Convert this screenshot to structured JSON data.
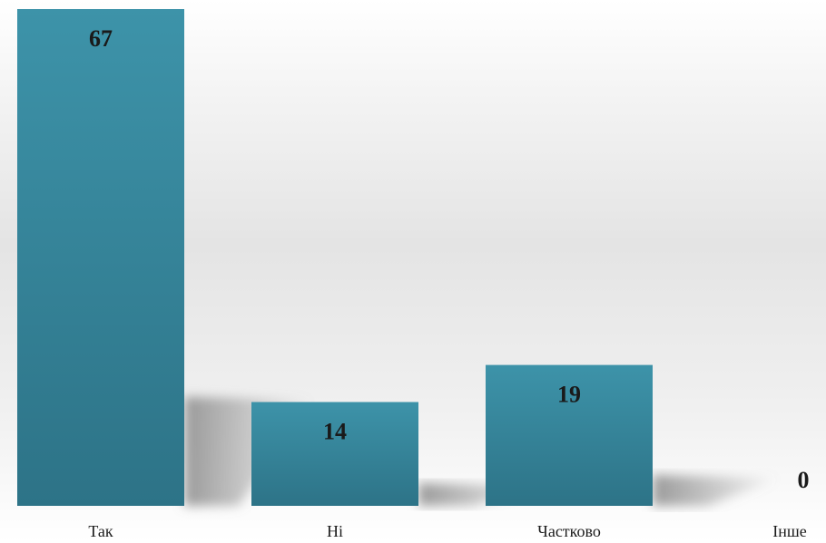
{
  "chart_data": {
    "type": "bar",
    "title": "",
    "xlabel": "",
    "ylabel": "",
    "categories": [
      "Так",
      "Ні",
      "Частково",
      "Інше"
    ],
    "values": [
      67,
      14,
      19,
      0
    ],
    "ylim": [
      0,
      67
    ],
    "grid": false,
    "legend": "none",
    "colors": {
      "bar_top": "#3d93a9",
      "bar_bottom": "#2d7387",
      "shadow": "#9a9a9a"
    }
  }
}
